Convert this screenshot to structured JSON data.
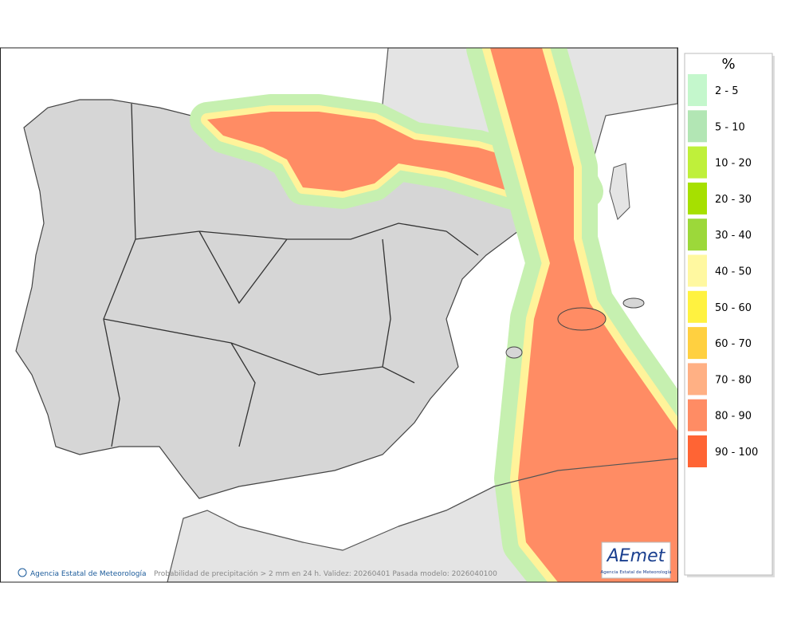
{
  "legend": {
    "title": "%",
    "items": [
      {
        "label": "2 - 5",
        "color": "#c4f7cc"
      },
      {
        "label": "5 - 10",
        "color": "#b2e6b4"
      },
      {
        "label": "10 - 20",
        "color": "#bff03a"
      },
      {
        "label": "20 - 30",
        "color": "#a6e000"
      },
      {
        "label": "30 - 40",
        "color": "#9cd83a"
      },
      {
        "label": "40 - 50",
        "color": "#fff8a0"
      },
      {
        "label": "50 - 60",
        "color": "#fff240"
      },
      {
        "label": "60 - 70",
        "color": "#ffd040"
      },
      {
        "label": "70 - 80",
        "color": "#ffb084"
      },
      {
        "label": "80 - 90",
        "color": "#ff8c64"
      },
      {
        "label": "90 - 100",
        "color": "#ff6434"
      }
    ]
  },
  "footer": {
    "credit": "Agencia Estatal de Meteorología",
    "caption": "Probabilidad de precipitación > 2 mm en 24 h. Validez: 20260401 Pasada modelo: 2026040100"
  },
  "logo": {
    "text": "AEmet",
    "subtitle": "Agencia Estatal de Meteorología"
  }
}
